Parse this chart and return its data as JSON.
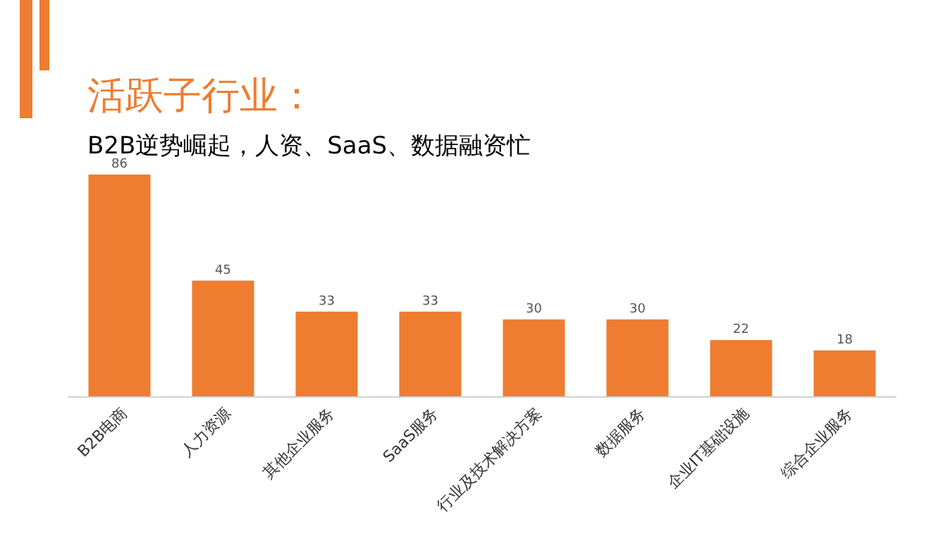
{
  "chart_data": {
    "type": "bar",
    "title": "活跃子行业：",
    "subtitle": "B2B逆势崛起，人资、SaaS、数据融资忙",
    "categories": [
      "B2B电商",
      "人力资源",
      "其他企业服务",
      "SaaS服务",
      "行业及技术解决方案",
      "数据服务",
      "企业IT基础设施",
      "综合企业服务"
    ],
    "values": [
      86,
      45,
      33,
      33,
      30,
      30,
      22,
      18
    ],
    "color": "#ee7d31",
    "data_labels": true
  }
}
